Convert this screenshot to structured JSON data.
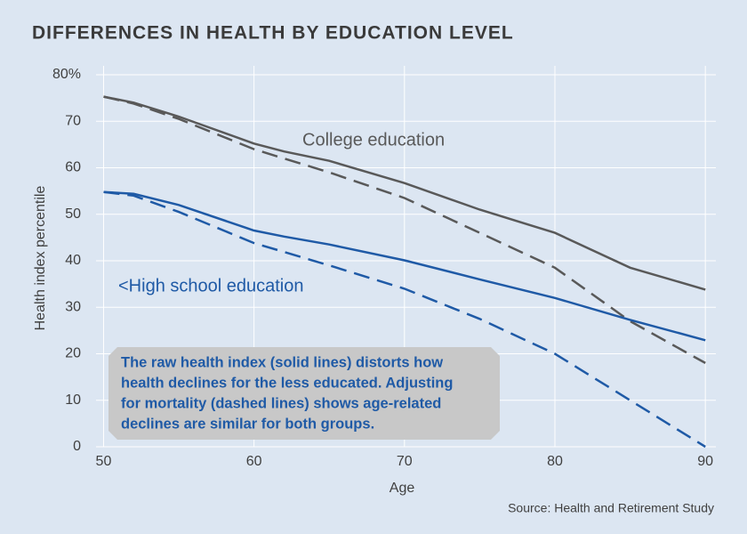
{
  "chart_data": {
    "type": "line",
    "title": "DIFFERENCES IN HEALTH BY EDUCATION LEVEL",
    "x_label": "Age",
    "y_label": "Health index percentile",
    "source": "Source: Health and Retirement Study",
    "annotation": [
      "The raw health index (solid lines) distorts how",
      "health declines for the less educated. Adjusting",
      "for mortality (dashed lines) shows age-related",
      "declines are similar for both groups."
    ],
    "x": [
      50,
      52,
      55,
      60,
      62,
      65,
      70,
      75,
      80,
      85,
      90
    ],
    "series": [
      {
        "name": "College education",
        "color": "#595959",
        "dashed": false,
        "values": [
          75.3,
          74.0,
          71.0,
          65.2,
          63.5,
          61.5,
          56.7,
          51.0,
          46.0,
          38.5,
          33.8
        ]
      },
      {
        "color": "#595959",
        "dashed": true,
        "values": [
          75.3,
          73.8,
          70.5,
          64.0,
          62.0,
          59.0,
          53.5,
          46.0,
          38.5,
          27.0,
          18.0
        ]
      },
      {
        "name": "<High school education",
        "color": "#1f5aa6",
        "dashed": false,
        "values": [
          54.8,
          54.4,
          52.0,
          46.5,
          45.2,
          43.5,
          40.1,
          36.0,
          32.0,
          27.3,
          22.9
        ]
      },
      {
        "color": "#1f5aa6",
        "dashed": true,
        "values": [
          54.8,
          54.0,
          50.5,
          43.8,
          41.9,
          39.0,
          34.0,
          27.5,
          20.0,
          10.0,
          0
        ]
      }
    ],
    "xlim": [
      49.5,
      90.7
    ],
    "xticks": [
      50,
      60,
      70,
      80,
      90
    ],
    "ylim": [
      0,
      80
    ],
    "yticks": [
      0,
      10,
      20,
      30,
      40,
      50,
      60,
      70,
      {
        "value": 80,
        "label": "80%"
      }
    ],
    "grid": true
  }
}
